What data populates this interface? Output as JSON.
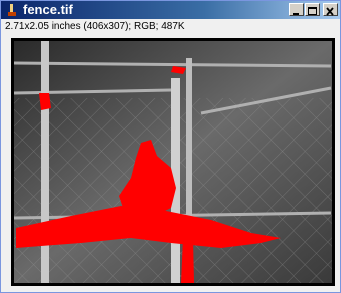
{
  "window": {
    "title": "fence.tif",
    "info": "2.71x2.05 inches (406x307); RGB; 487K"
  }
}
